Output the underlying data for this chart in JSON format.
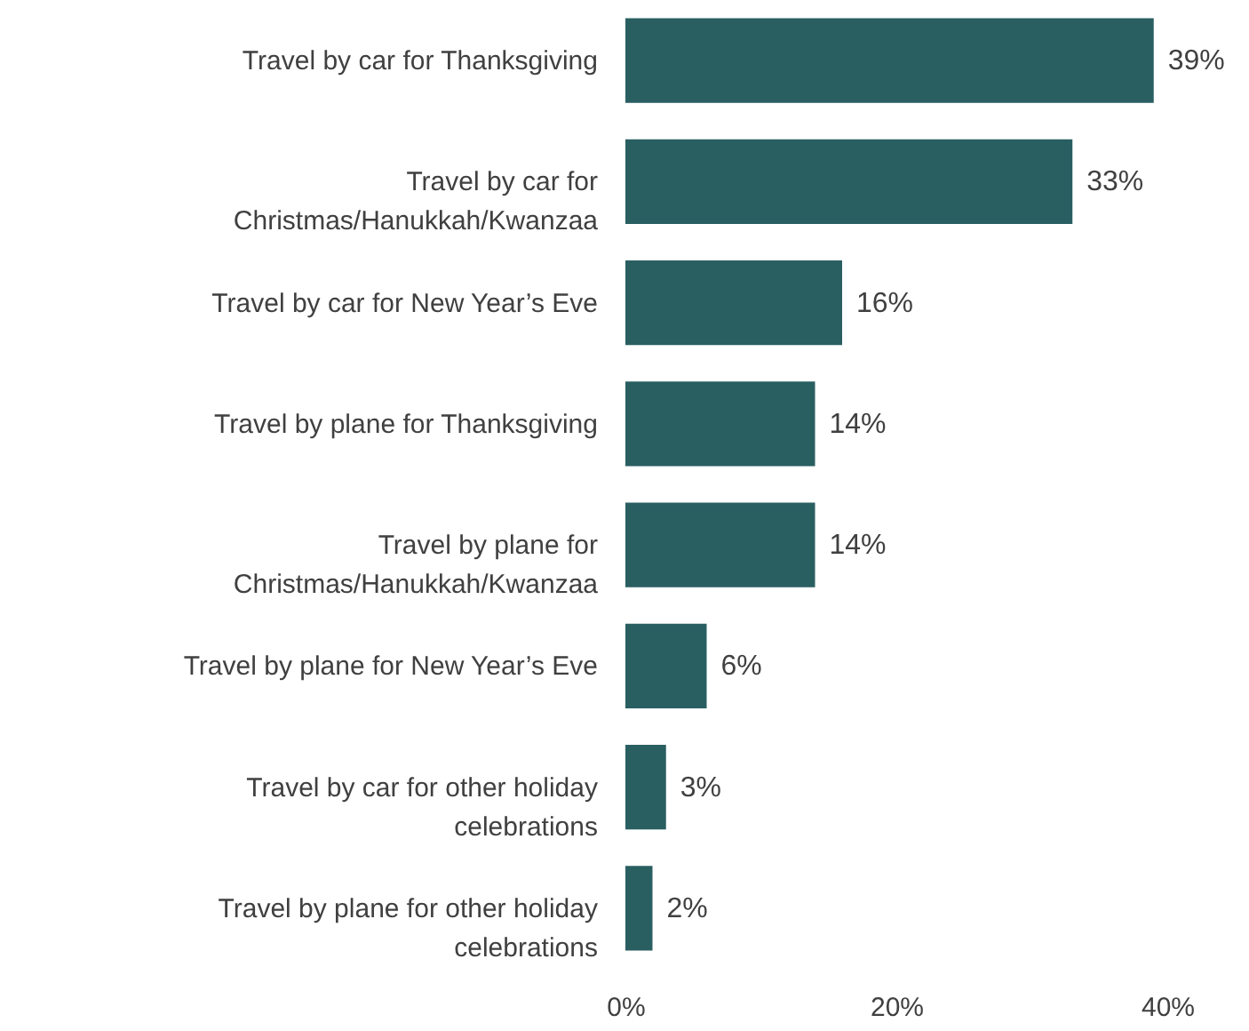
{
  "chart_data": {
    "type": "bar",
    "orientation": "horizontal",
    "categories": [
      "Travel by car for Thanksgiving",
      "Travel by car for Christmas/Hanukkah/Kwanzaa",
      "Travel by car for New Year’s Eve",
      "Travel by plane for Thanksgiving",
      "Travel by plane for Christmas/Hanukkah/Kwanzaa",
      "Travel by plane for New Year’s Eve",
      "Travel by car for other holiday celebrations",
      "Travel by plane for other holiday celebrations"
    ],
    "series": [
      {
        "color": "#2a5f62",
        "values": [
          39,
          33,
          16,
          14,
          14,
          6,
          3,
          2
        ],
        "value_labels": [
          "39%",
          "33%",
          "16%",
          "14%",
          "14%",
          "6%",
          "3%",
          "2%"
        ]
      }
    ],
    "xlim": [
      0,
      40
    ],
    "xticks": [
      {
        "value": 0,
        "label": "0%"
      },
      {
        "value": 20,
        "label": "20%"
      },
      {
        "value": 40,
        "label": "40%"
      }
    ],
    "grid": false,
    "legend": false
  }
}
